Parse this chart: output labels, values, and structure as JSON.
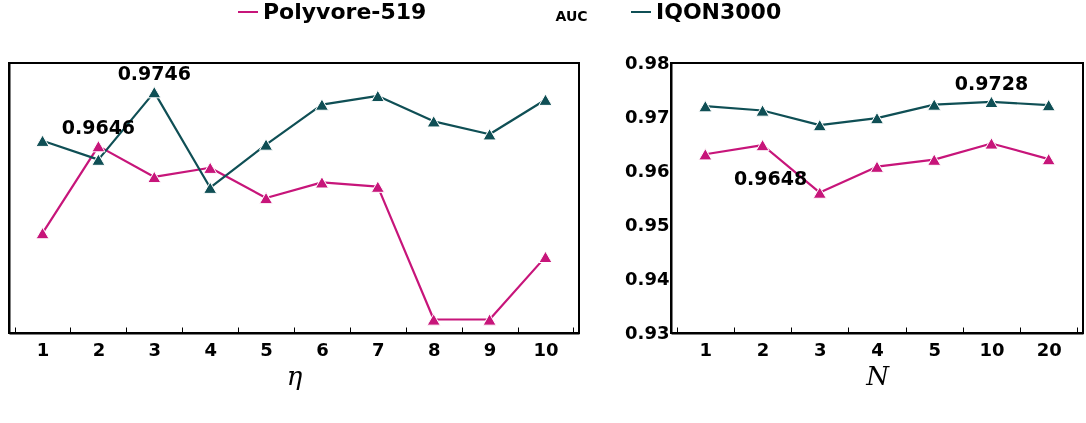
{
  "chart_data": [
    {
      "type": "line",
      "xlabel": "η",
      "categories": [
        "1",
        "2",
        "3",
        "4",
        "5",
        "6",
        "7",
        "8",
        "9",
        "10"
      ],
      "ylim": [
        0.93,
        0.98
      ],
      "tick_labels": "x",
      "marker": "triangle",
      "legend": "top",
      "series": [
        {
          "name": "Polyvore-519",
          "color": "#c7157a",
          "values": [
            0.9485,
            0.9646,
            0.9589,
            0.9606,
            0.955,
            0.9579,
            0.9571,
            0.9325,
            0.9325,
            0.9441
          ]
        },
        {
          "name": "IQON3000",
          "color": "#0f4f55",
          "values": [
            0.9656,
            0.9621,
            0.9746,
            0.9569,
            0.9649,
            0.9723,
            0.9739,
            0.9692,
            0.9668,
            0.9732
          ]
        }
      ],
      "annotations": [
        {
          "text": "0.9646",
          "x": "2",
          "y": 0.9646
        },
        {
          "text": "0.9746",
          "x": "3",
          "y": 0.9746
        }
      ]
    },
    {
      "type": "line",
      "xlabel": "N",
      "ylabel": "AUC",
      "categories": [
        "1",
        "2",
        "3",
        "4",
        "5",
        "10",
        "20"
      ],
      "ylim": [
        0.93,
        0.98
      ],
      "yticks": [
        0.93,
        0.94,
        0.95,
        0.96,
        0.97,
        0.98
      ],
      "marker": "triangle",
      "series": [
        {
          "name": "Polyvore-519",
          "color": "#c7157a",
          "values": [
            0.9631,
            0.9648,
            0.956,
            0.9608,
            0.9621,
            0.9651,
            0.9622
          ]
        },
        {
          "name": "IQON3000",
          "color": "#0f4f55",
          "values": [
            0.972,
            0.9712,
            0.9685,
            0.9698,
            0.9723,
            0.9728,
            0.9722
          ]
        }
      ],
      "annotations": [
        {
          "text": "0.9648",
          "x": "2",
          "y": 0.9648
        },
        {
          "text": "0.9728",
          "x": "10",
          "y": 0.9728
        }
      ]
    }
  ]
}
